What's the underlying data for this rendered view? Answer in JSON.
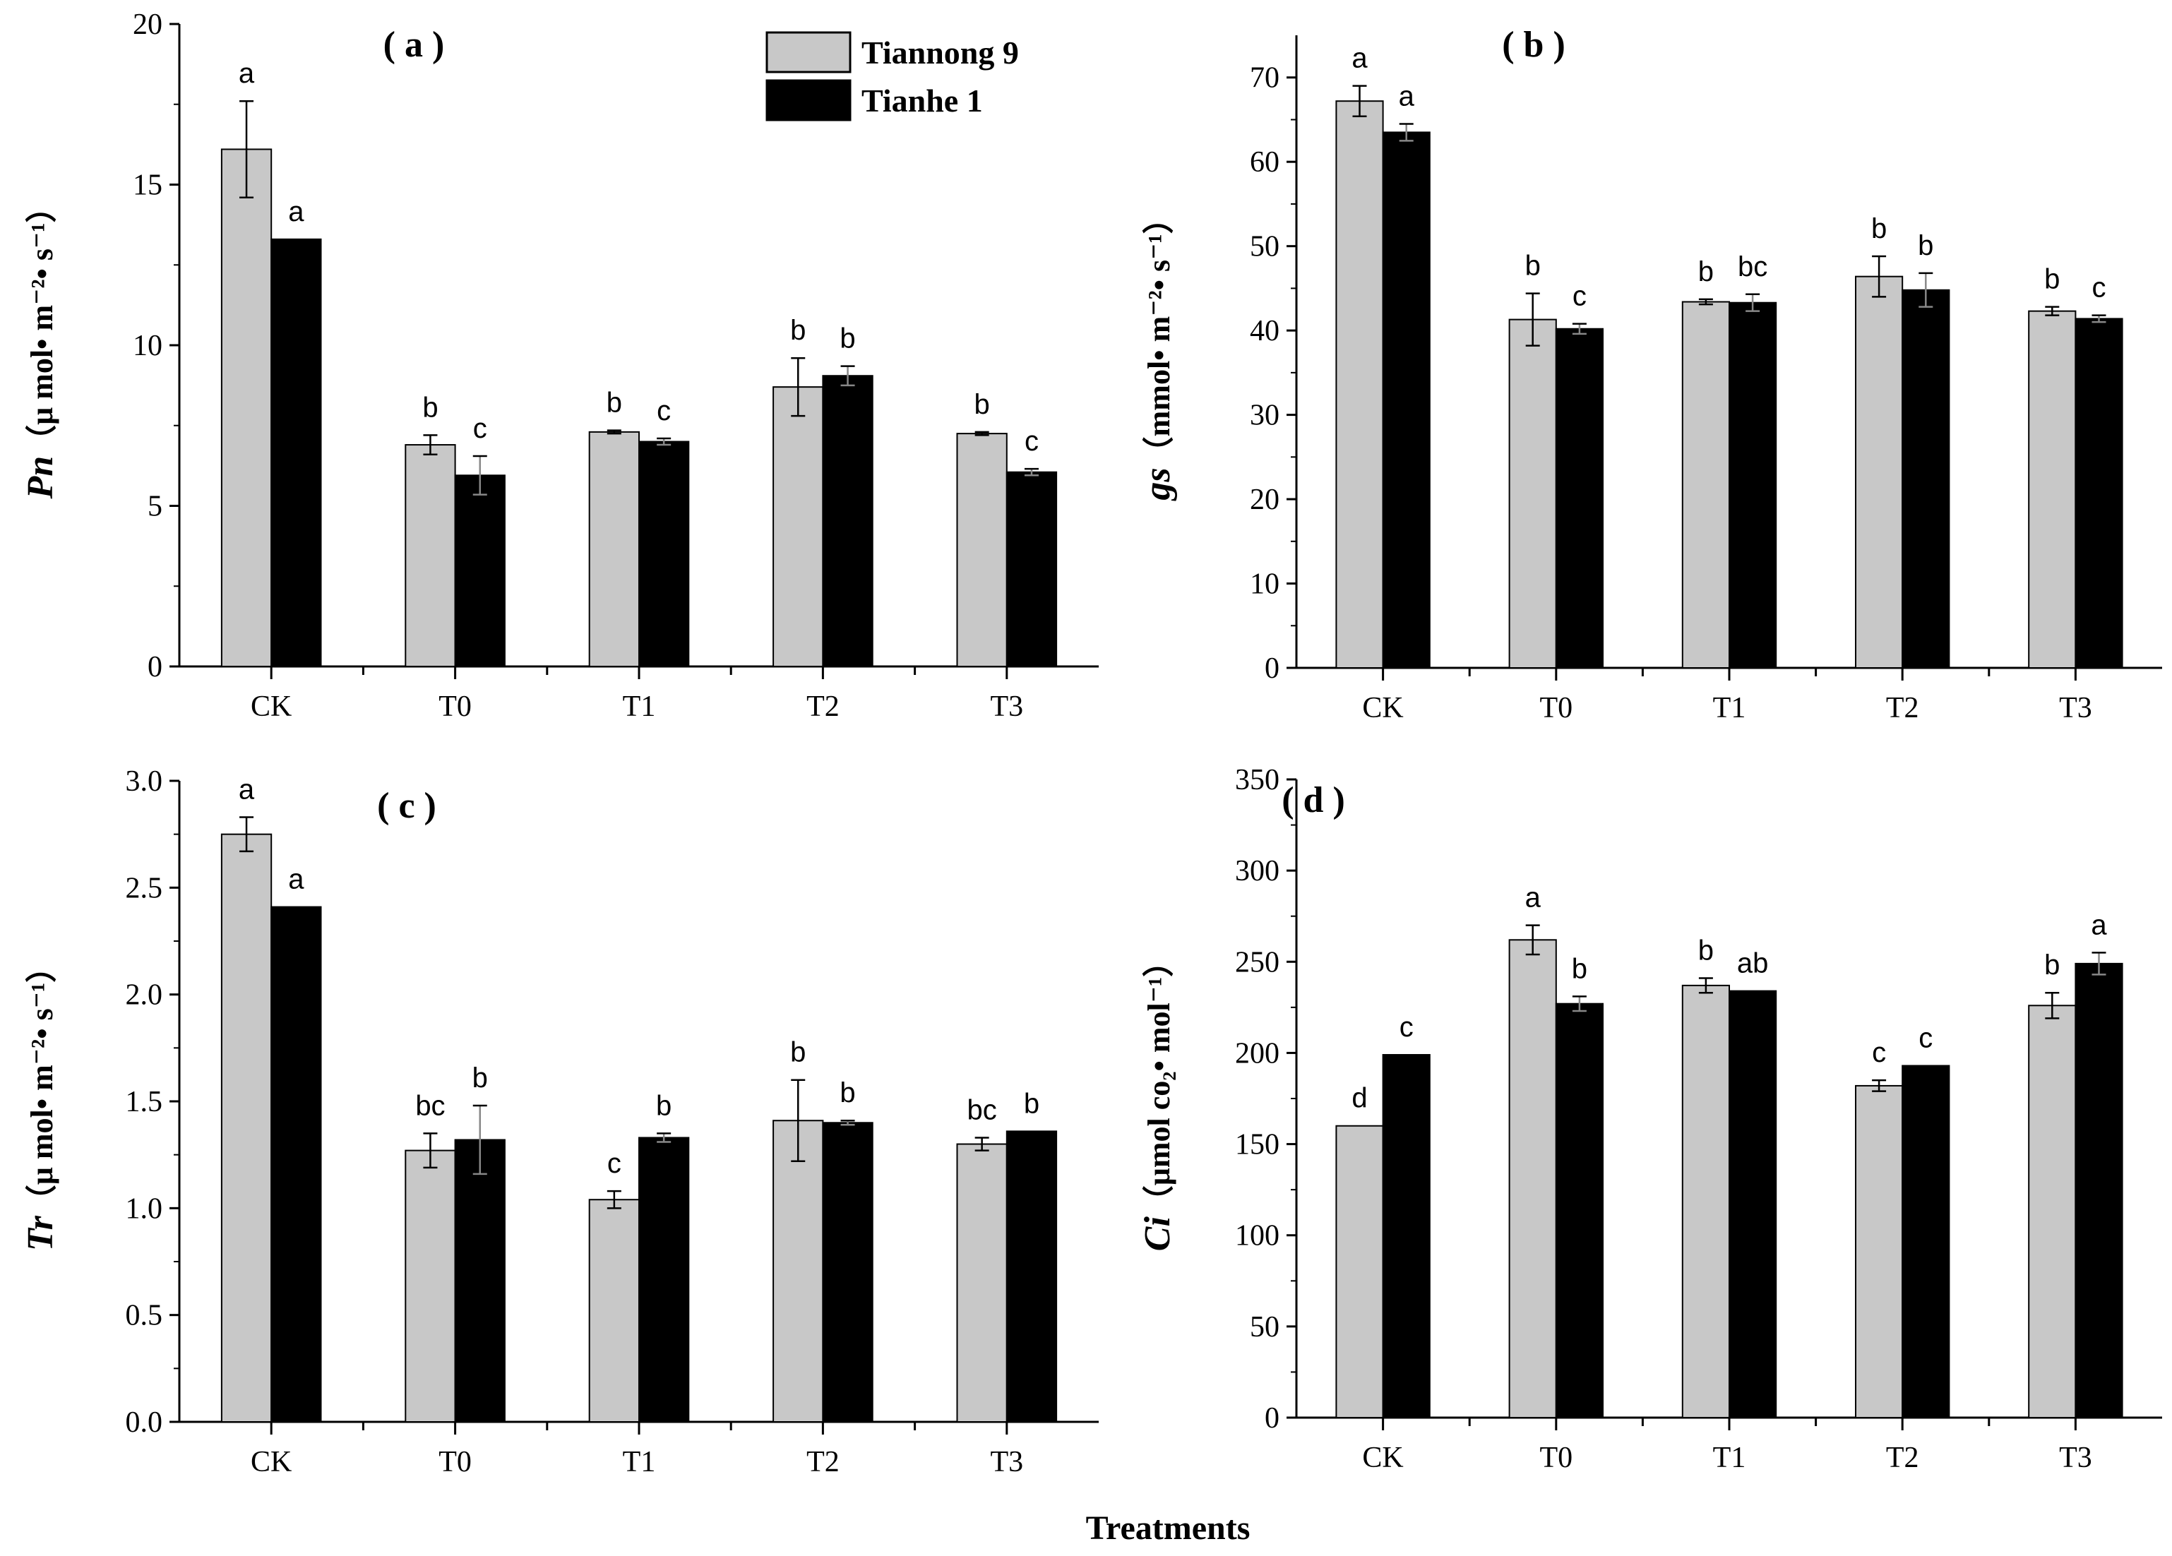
{
  "colors": {
    "tiannong9": "#c8c8c8",
    "tianhe1": "#000000",
    "axis": "#000000"
  },
  "legend": {
    "series": [
      "Tiannong 9",
      "Tianhe 1"
    ]
  },
  "xlabel": "Treatments",
  "chart_data": [
    {
      "id": "a",
      "type": "bar",
      "panel_label": "( a )",
      "categories": [
        "CK",
        "T0",
        "T1",
        "T2",
        "T3"
      ],
      "ylim": [
        0,
        20
      ],
      "yticks": [
        0,
        5,
        10,
        15,
        20
      ],
      "tick_labels": [
        "0",
        "5",
        "10",
        "15",
        "20"
      ],
      "ylabel_var": "Pn",
      "ylabel_unit": "（μ mol• m⁻²• s⁻¹）",
      "series": [
        {
          "name": "Tiannong 9",
          "values": [
            16.1,
            6.9,
            7.3,
            8.7,
            7.25
          ],
          "errors": [
            1.5,
            0.3,
            0.05,
            0.9,
            0.05
          ],
          "letters": [
            "a",
            "b",
            "b",
            "b",
            "b"
          ]
        },
        {
          "name": "Tianhe 1",
          "values": [
            13.3,
            5.95,
            7.0,
            9.05,
            6.05
          ],
          "errors": [
            0.0,
            0.6,
            0.1,
            0.3,
            0.1
          ],
          "letters": [
            "a",
            "c",
            "c",
            "b",
            "c"
          ]
        }
      ]
    },
    {
      "id": "b",
      "type": "bar",
      "panel_label": "( b )",
      "categories": [
        "CK",
        "T0",
        "T1",
        "T2",
        "T3"
      ],
      "ylim": [
        0,
        75
      ],
      "yticks": [
        0,
        10,
        20,
        30,
        40,
        50,
        60,
        70
      ],
      "tick_labels": [
        "0",
        "10",
        "20",
        "30",
        "40",
        "50",
        "60",
        "70"
      ],
      "ylabel_var": "gs",
      "ylabel_unit": "（mmol• m⁻²• s⁻¹）",
      "series": [
        {
          "name": "Tiannong 9",
          "values": [
            67.2,
            41.3,
            43.4,
            46.4,
            42.3
          ],
          "errors": [
            1.8,
            3.1,
            0.3,
            2.4,
            0.5
          ],
          "letters": [
            "a",
            "b",
            "b",
            "b",
            "b"
          ]
        },
        {
          "name": "Tianhe 1",
          "values": [
            63.5,
            40.2,
            43.3,
            44.8,
            41.4
          ],
          "errors": [
            1.0,
            0.6,
            1.0,
            2.0,
            0.4
          ],
          "letters": [
            "a",
            "c",
            "bc",
            "b",
            "c"
          ]
        }
      ]
    },
    {
      "id": "c",
      "type": "bar",
      "panel_label": "( c )",
      "categories": [
        "CK",
        "T0",
        "T1",
        "T2",
        "T3"
      ],
      "ylim": [
        0,
        3.0
      ],
      "yticks": [
        0,
        0.5,
        1.0,
        1.5,
        2.0,
        2.5,
        3.0
      ],
      "tick_labels": [
        "0.0",
        "0.5",
        "1.0",
        "1.5",
        "2.0",
        "2.5",
        "3.0"
      ],
      "ylabel_var": "Tr",
      "ylabel_unit": "（μ mol• m⁻²• s⁻¹）",
      "series": [
        {
          "name": "Tiannong 9",
          "values": [
            2.75,
            1.27,
            1.04,
            1.41,
            1.3
          ],
          "errors": [
            0.08,
            0.08,
            0.04,
            0.19,
            0.03
          ],
          "letters": [
            "a",
            "bc",
            "c",
            "b",
            "bc"
          ]
        },
        {
          "name": "Tianhe 1",
          "values": [
            2.41,
            1.32,
            1.33,
            1.4,
            1.36
          ],
          "errors": [
            0.0,
            0.16,
            0.02,
            0.01,
            0.0
          ],
          "letters": [
            "a",
            "b",
            "b",
            "b",
            "b"
          ]
        }
      ]
    },
    {
      "id": "d",
      "type": "bar",
      "panel_label": "( d )",
      "categories": [
        "CK",
        "T0",
        "T1",
        "T2",
        "T3"
      ],
      "ylim": [
        0,
        350
      ],
      "yticks": [
        0,
        50,
        100,
        150,
        200,
        250,
        300,
        350
      ],
      "tick_labels": [
        "0",
        "50",
        "100",
        "150",
        "200",
        "250",
        "300",
        "350"
      ],
      "ylabel_var": "Ci",
      "ylabel_unit": "（μmol co₂• mol⁻¹）",
      "series": [
        {
          "name": "Tiannong 9",
          "values": [
            160,
            262,
            237,
            182,
            226
          ],
          "errors": [
            0,
            8,
            4,
            3,
            7
          ],
          "letters": [
            "d",
            "a",
            "b",
            "c",
            "b"
          ]
        },
        {
          "name": "Tianhe 1",
          "values": [
            199,
            227,
            234,
            193,
            249
          ],
          "errors": [
            0,
            4,
            0,
            0,
            6
          ],
          "letters": [
            "c",
            "b",
            "ab",
            "c",
            "a"
          ]
        }
      ]
    }
  ]
}
